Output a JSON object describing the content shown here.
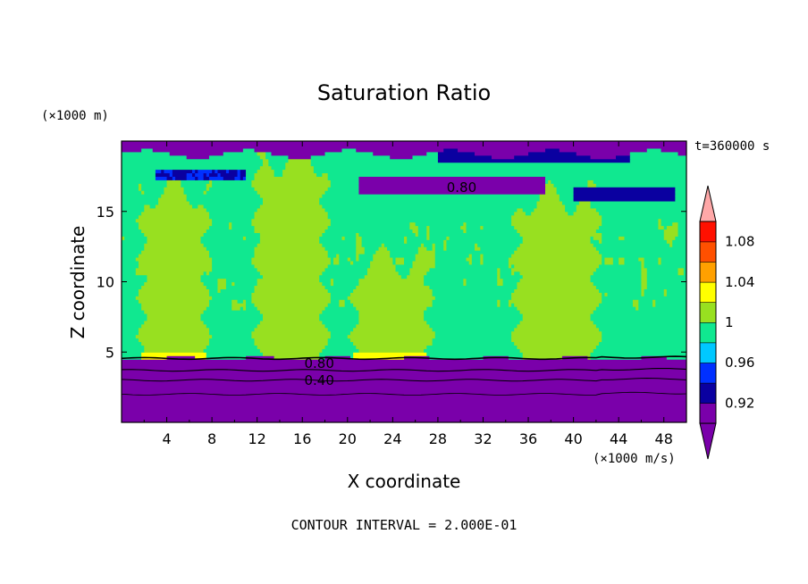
{
  "chart_data": {
    "type": "heatmap",
    "title": "Saturation Ratio",
    "xlabel": "X coordinate",
    "ylabel": "Z coordinate",
    "x_unit": "(×1000 m/s)",
    "y_unit": "(×1000 m)",
    "time_label": "t=360000 s",
    "footer": "CONTOUR INTERVAL = 2.000E-01",
    "xlim": [
      0,
      50
    ],
    "ylim": [
      0,
      20
    ],
    "x_ticks": [
      4,
      8,
      12,
      16,
      20,
      24,
      28,
      32,
      36,
      40,
      44,
      48
    ],
    "x_tick_labels": [
      "4",
      "8",
      "12",
      "16",
      "20",
      "24",
      "28",
      "32",
      "36",
      "40",
      "44",
      "48"
    ],
    "y_ticks": [
      5,
      10,
      15
    ],
    "y_tick_labels": [
      "5",
      "10",
      "15"
    ],
    "colorbar": {
      "levels": [
        0.9,
        0.92,
        0.94,
        0.96,
        0.98,
        1.0,
        1.02,
        1.04,
        1.06,
        1.08,
        1.1
      ],
      "tick_values": [
        0.92,
        0.96,
        1.0,
        1.04,
        1.08
      ],
      "tick_labels": [
        "0.92",
        "0.96",
        "1",
        "1.04",
        "1.08"
      ],
      "colors": [
        "#7a00aa",
        "#0a00a0",
        "#0030ff",
        "#00c8ff",
        "#10e890",
        "#98e020",
        "#ffff00",
        "#ffa000",
        "#ff5000",
        "#ff1000"
      ],
      "under_color": "#7a00aa",
      "over_color": "#ffa8a8"
    },
    "contour_labels": [
      {
        "text": "0.80",
        "x": 30.1,
        "z": 16.7
      },
      {
        "text": "0.80",
        "x": 17.5,
        "z": 4.2
      },
      {
        "text": "0.40",
        "x": 17.5,
        "z": 3.0
      }
    ],
    "regions_description": {
      "background_level": 0.99,
      "lower_layer_top_z": 4.6,
      "lower_layer_value": 0.9,
      "supersaturated_columns": [
        {
          "x_from": 1.8,
          "x_to": 7.5,
          "z_top": 16.5
        },
        {
          "x_from": 12.0,
          "x_to": 18.0,
          "z_top": 18.7
        },
        {
          "x_from": 20.6,
          "x_to": 27.2,
          "z_top": 11.5
        },
        {
          "x_from": 35.0,
          "x_to": 42.0,
          "z_top": 16.0
        }
      ]
    }
  }
}
